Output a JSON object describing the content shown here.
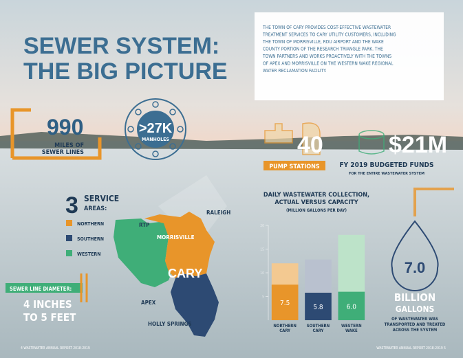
{
  "header": {
    "title": [
      "SEWER SYSTEM:",
      "THE BIG PICTURE"
    ],
    "intro": [
      "THE TOWN OF CARY PROVIDES COST-EFFECTIVE WASTEWATER",
      "TREATMENT SERVICES TO CARY UTILITY CUSTOMERS, INCLUDING",
      "THE TOWN OF MORRISVILLE, RDU AIRPORT AND THE WAKE",
      "COUNTY PORTION OF THE RESEARCH TRIANGLE PARK. THE",
      "TOWN PARTNERS AND WORKS PROACTIVELY WITH THE TOWNS",
      "OF APEX AND MORRISVILLE ON THE WESTERN WAKE REGIONAL",
      "WATER RECLAMATION FACILITY."
    ]
  },
  "stats": {
    "miles": {
      "value": "990",
      "label": [
        "MILES OF",
        "SEWER LINES"
      ]
    },
    "manholes": {
      "value": ">27K",
      "label": "MANHOLES"
    },
    "pumps": {
      "value": "40",
      "label": "PUMP STATIONS"
    },
    "funds": {
      "value": "$21M",
      "label": "FY 2019 BUDGETED FUNDS",
      "note": "FOR THE ENTIRE WASTEWATER SYSTEM"
    },
    "gallons": {
      "value": "7.0",
      "label": [
        "BILLION",
        "GALLONS"
      ],
      "note": [
        "OF WASTEWATER WAS",
        "TRANSPORTED AND TREATED",
        "ACROSS THE SYSTEM"
      ]
    },
    "diameter": {
      "label": "SEWER LINE DIAMETER:",
      "value": [
        "4 INCHES",
        "TO 5 FEET"
      ]
    }
  },
  "service_areas": {
    "count": "3",
    "label": [
      "SERVICE",
      "AREAS:"
    ],
    "legend": [
      {
        "name": "NORTHERN",
        "color": "#e8952a"
      },
      {
        "name": "SOUTHERN",
        "color": "#2d4a73"
      },
      {
        "name": "WESTERN",
        "color": "#3fae78"
      }
    ],
    "places": [
      "RTP",
      "RALEIGH",
      "MORRISVILLE",
      "CARY",
      "APEX",
      "HOLLY SPRINGS"
    ]
  },
  "chart_data": {
    "type": "bar",
    "title": [
      "DAILY WASTEWATER COLLECTION,",
      "ACTUAL VERSUS CAPACITY"
    ],
    "subtitle": "(MILLION GALLONS PER DAY)",
    "categories": [
      "NORTHERN CARY",
      "SOUTHERN CARY",
      "WESTERN WAKE"
    ],
    "series": [
      {
        "colors": [
          "#f3c991",
          "#b9c1cf",
          "#bde3c9"
        ],
        "values": [
          12,
          12.8,
          18
        ]
      },
      {
        "colors": [
          "#e8952a",
          "#2d4a73",
          "#3fae78"
        ],
        "values": [
          7.5,
          5.8,
          6.0
        ],
        "value_labels": [
          "7.5",
          "5.8",
          "6.0"
        ]
      }
    ],
    "ylim": [
      0,
      20
    ],
    "yticks": [
      5,
      10,
      15,
      20
    ]
  },
  "footer": {
    "left": "4  WASTEWATER ANNUAL REPORT 2018-2019",
    "right": "WASTEWATER ANNUAL REPORT 2018-2019  5"
  }
}
